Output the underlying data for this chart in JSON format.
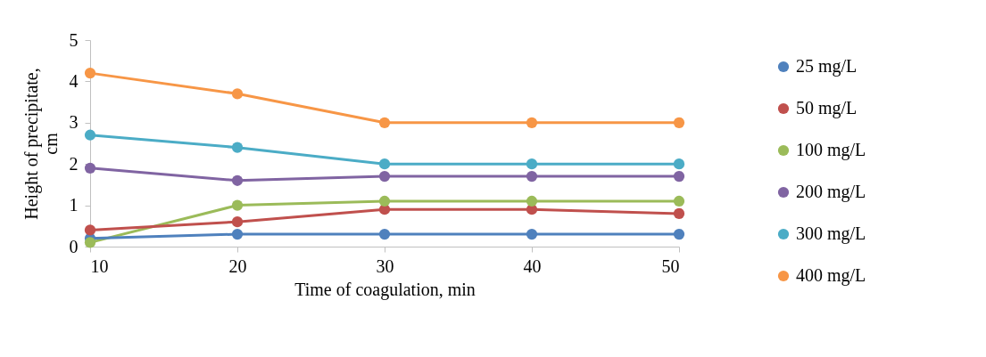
{
  "chart_data": {
    "type": "line",
    "xlabel": "Time of coagulation, min",
    "ylabel": "Height of precipitate, cm",
    "x": [
      10,
      20,
      30,
      40,
      50
    ],
    "xlim": [
      10,
      50
    ],
    "xticks": [
      10,
      20,
      30,
      40,
      50
    ],
    "ylim": [
      0,
      5
    ],
    "yticks": [
      0,
      1,
      2,
      3,
      4,
      5
    ],
    "grid": false,
    "legend": "right",
    "marker": "circle",
    "line_style": "solid",
    "series": [
      {
        "name": "25 mg/L",
        "color": "#4f81bd",
        "values": [
          0.2,
          0.3,
          0.3,
          0.3,
          0.3
        ]
      },
      {
        "name": "50 mg/L",
        "color": "#c0504d",
        "values": [
          0.4,
          0.6,
          0.9,
          0.9,
          0.8
        ]
      },
      {
        "name": "100 mg/L",
        "color": "#9bbb59",
        "values": [
          0.1,
          1.0,
          1.1,
          1.1,
          1.1
        ]
      },
      {
        "name": "200 mg/L",
        "color": "#8064a2",
        "values": [
          1.9,
          1.6,
          1.7,
          1.7,
          1.7
        ]
      },
      {
        "name": "300 mg/L",
        "color": "#4bacc6",
        "values": [
          2.7,
          2.4,
          2.0,
          2.0,
          2.0
        ]
      },
      {
        "name": "400 mg/L",
        "color": "#f79646",
        "values": [
          4.2,
          3.7,
          3.0,
          3.0,
          3.0
        ]
      }
    ]
  }
}
